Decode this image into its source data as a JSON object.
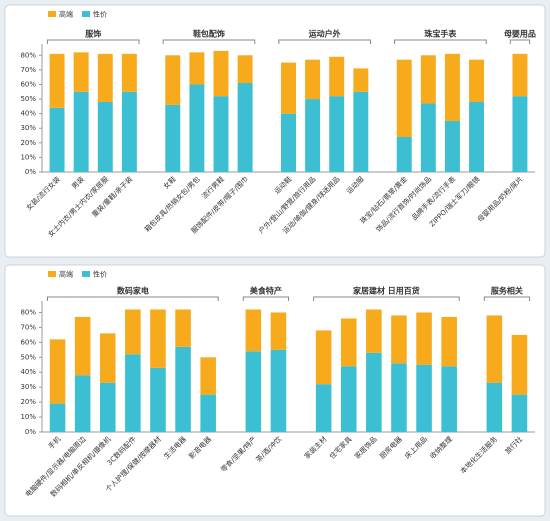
{
  "chart_data": [
    {
      "type": "bar",
      "stacked": true,
      "legend": "top-left",
      "ylim": [
        0,
        85
      ],
      "yticks": [
        {
          "value": 0,
          "label": "0%"
        },
        {
          "value": 10,
          "label": "10%"
        },
        {
          "value": 20,
          "label": "20%"
        },
        {
          "value": 30,
          "label": "30%"
        },
        {
          "value": 40,
          "label": "40%"
        },
        {
          "value": 50,
          "label": "50%"
        },
        {
          "value": 60,
          "label": "60%"
        },
        {
          "value": 70,
          "label": "70%"
        },
        {
          "value": 80,
          "label": "80%"
        }
      ],
      "groups": [
        {
          "name": "服饰",
          "categories": [
            "女装/流行女装",
            "男装",
            "女士内衣/男士内衣/家居服",
            "童装/童鞋/亲子装"
          ]
        },
        {
          "name": "鞋包配饰",
          "categories": [
            "女鞋",
            "箱包皮具/热销女包/男包",
            "流行男鞋",
            "服饰配件/皮带/帽子/围巾"
          ]
        },
        {
          "name": "运动户外",
          "categories": [
            "运动鞋",
            "户外/登山/野营/旅行用品",
            "运动/瑜伽/健身/球迷用品",
            "运动服"
          ]
        },
        {
          "name": "珠宝手表",
          "categories": [
            "珠宝/钻石/翡翠/黄金",
            "饰品/流行首饰/时尚饰品",
            "品牌手表/流行手表",
            "ZIPPO/瑞士军刀/眼镜"
          ]
        },
        {
          "name": "母婴用品",
          "categories": [
            "母婴用品/奶粉/尿片"
          ]
        }
      ],
      "series": [
        {
          "name": "性价",
          "color": "#3cbfd2",
          "values": [
            44,
            55,
            48,
            55,
            46,
            60,
            52,
            61,
            40,
            50,
            52,
            55,
            24,
            47,
            35,
            48,
            52
          ]
        },
        {
          "name": "高端",
          "color": "#f6aa1c",
          "values": [
            37,
            27,
            33,
            26,
            34,
            22,
            31,
            19,
            35,
            27,
            27,
            16,
            53,
            33,
            46,
            29,
            29
          ]
        }
      ]
    },
    {
      "type": "bar",
      "stacked": true,
      "legend": "top-left",
      "ylim": [
        0,
        85
      ],
      "yticks": [
        {
          "value": 0,
          "label": "0%"
        },
        {
          "value": 10,
          "label": "10%"
        },
        {
          "value": 20,
          "label": "20%"
        },
        {
          "value": 30,
          "label": "30%"
        },
        {
          "value": 40,
          "label": "40%"
        },
        {
          "value": 50,
          "label": "50%"
        },
        {
          "value": 60,
          "label": "60%"
        },
        {
          "value": 70,
          "label": "70%"
        },
        {
          "value": 80,
          "label": "80%"
        }
      ],
      "groups": [
        {
          "name": "数码家电",
          "categories": [
            "手机",
            "电脑硬件/显示器/电脑周边",
            "数码相机/单反相机/摄像机",
            "3C数码配件",
            "个人护理/保健/按摩器材",
            "生活电器",
            "影音电器"
          ]
        },
        {
          "name": "美食特产",
          "categories": [
            "零食/坚果/特产",
            "茶/酒/冲饮"
          ]
        },
        {
          "name": "家居建材 日用百货",
          "categories": [
            "家装主材",
            "住宅家具",
            "家居饰品",
            "厨房电器",
            "床上用品",
            "收纳整理"
          ]
        },
        {
          "name": "服务相关",
          "categories": [
            "本地化生活服务",
            "旅行社"
          ]
        }
      ],
      "series": [
        {
          "name": "性价",
          "color": "#3cbfd2",
          "values": [
            19,
            38,
            33,
            52,
            43,
            57,
            25,
            54,
            55,
            32,
            44,
            53,
            46,
            45,
            44,
            33,
            25
          ]
        },
        {
          "name": "高端",
          "color": "#f6aa1c",
          "values": [
            43,
            39,
            33,
            30,
            39,
            25,
            25,
            28,
            25,
            36,
            32,
            29,
            32,
            35,
            33,
            45,
            40
          ]
        }
      ]
    }
  ]
}
